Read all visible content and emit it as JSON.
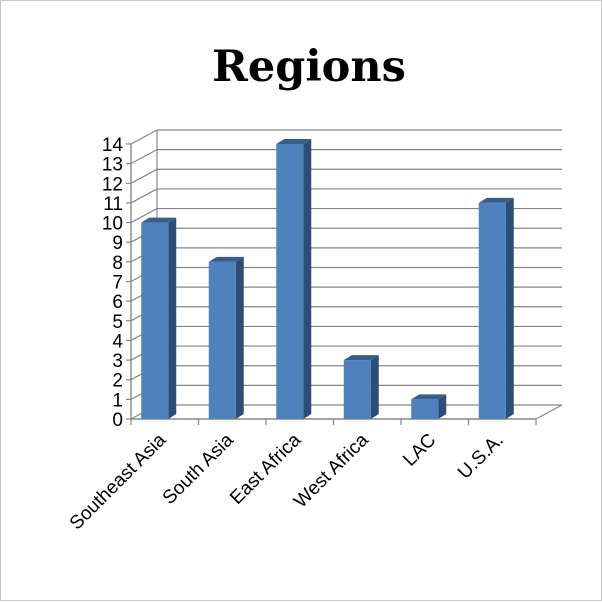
{
  "chart_data": {
    "type": "bar",
    "title": "Regions",
    "xlabel": "",
    "ylabel": "",
    "categories": [
      "Southeast Asia",
      "South Asia",
      "East Africa",
      "West Africa",
      "LAC",
      "U.S.A."
    ],
    "values": [
      10,
      8,
      14,
      3,
      1,
      11
    ],
    "ylim": [
      0,
      14
    ],
    "yticks": [
      "0",
      "1",
      "2",
      "3",
      "4",
      "5",
      "6",
      "7",
      "8",
      "9",
      "10",
      "11",
      "12",
      "13",
      "14"
    ],
    "grid": true,
    "legend": "none",
    "style": "3d-column",
    "colors": {
      "bar_front": "#4f81bd",
      "bar_side": "#2c4d75",
      "bar_top": "#385d8a",
      "grid": "#868686"
    }
  }
}
